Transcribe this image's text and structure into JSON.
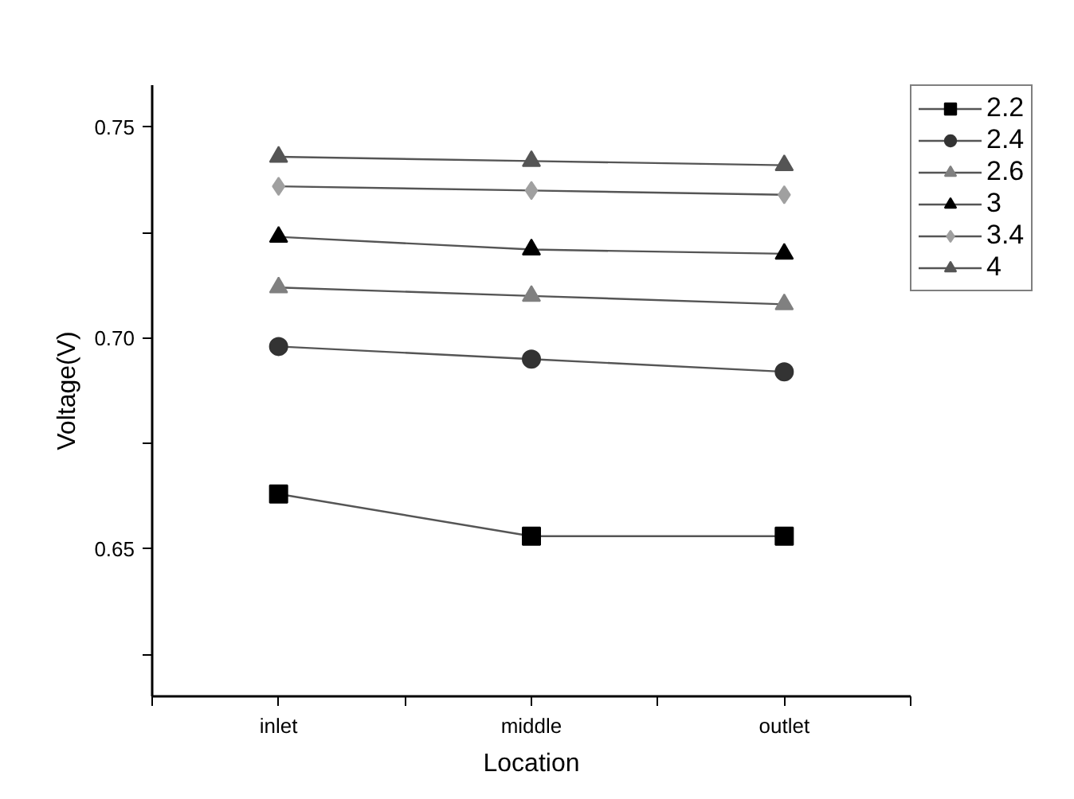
{
  "chart_data": {
    "type": "line",
    "xlabel": "Location",
    "ylabel": "Voltage(V)",
    "categories": [
      "inlet",
      "middle",
      "outlet"
    ],
    "ylim": [
      0.615,
      0.76
    ],
    "yticks": [
      {
        "value": 0.625,
        "label": null
      },
      0.65,
      {
        "value": 0.675,
        "label": null
      },
      {
        "value": 0.7,
        "label": "0.70"
      },
      {
        "value": 0.725,
        "label": null
      },
      0.75
    ],
    "grid": false,
    "legend": "top right",
    "series": [
      {
        "name": "2.2",
        "color": "#000000",
        "marker": "square",
        "values": [
          0.663,
          0.653,
          0.653
        ]
      },
      {
        "name": "2.4",
        "color": "#333333",
        "marker": "circle",
        "values": [
          0.698,
          0.695,
          0.692
        ]
      },
      {
        "name": "2.6",
        "color": "#808080",
        "marker": "triangle",
        "values": [
          0.712,
          0.71,
          0.708
        ]
      },
      {
        "name": "3",
        "color": "#000000",
        "marker": "triangle",
        "values": [
          0.724,
          0.721,
          0.72
        ]
      },
      {
        "name": "3.4",
        "color": "#a0a0a0",
        "marker": "diamond",
        "values": [
          0.736,
          0.735,
          0.734
        ]
      },
      {
        "name": "4",
        "color": "#555555",
        "marker": "triangle",
        "values": [
          0.743,
          0.742,
          0.741
        ]
      }
    ]
  }
}
